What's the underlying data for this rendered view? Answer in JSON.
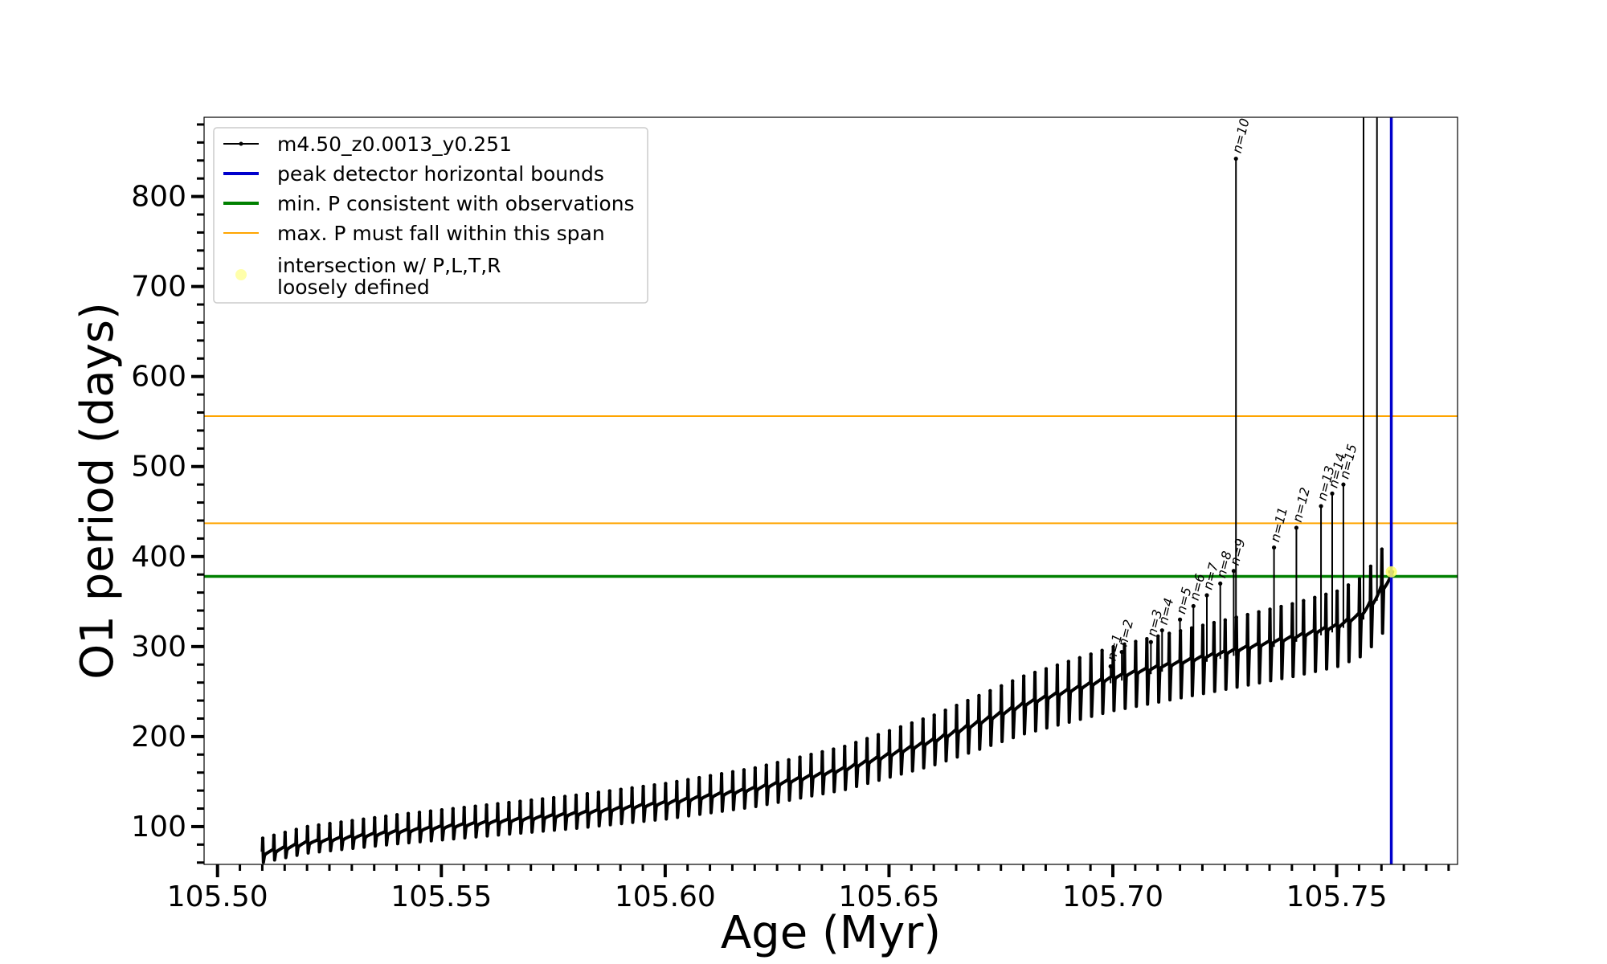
{
  "chart_data": {
    "type": "line",
    "title": "",
    "xlabel": "Age (Myr)",
    "ylabel": "O1 period (days)",
    "xlim": [
      105.497,
      105.777
    ],
    "ylim": [
      58,
      888
    ],
    "xticks": [
      105.5,
      105.55,
      105.6,
      105.65,
      105.7,
      105.75
    ],
    "xtick_labels": [
      "105.50",
      "105.55",
      "105.60",
      "105.65",
      "105.70",
      "105.75"
    ],
    "yticks": [
      100,
      200,
      300,
      400,
      500,
      600,
      700,
      800
    ],
    "ytick_labels": [
      "100",
      "200",
      "300",
      "400",
      "500",
      "600",
      "700",
      "800"
    ],
    "x_minor_step": 0.005,
    "y_minor_step": 20,
    "grid": false,
    "legend_position": "upper-left",
    "series": [
      {
        "name": "m4.50_z0.0013_y0.251",
        "color": "#000000",
        "track": {
          "start_age": 105.51,
          "pulse_age_step": 0.0025,
          "baseline_knots": [
            [
              105.51,
              72
            ],
            [
              105.52,
              84
            ],
            [
              105.54,
              96
            ],
            [
              105.56,
              106
            ],
            [
              105.58,
              116
            ],
            [
              105.6,
              128
            ],
            [
              105.62,
              144
            ],
            [
              105.64,
              166
            ],
            [
              105.66,
              198
            ],
            [
              105.68,
              238
            ],
            [
              105.7,
              268
            ],
            [
              105.72,
              290
            ],
            [
              105.74,
              312
            ],
            [
              105.75,
              325
            ],
            [
              105.756,
              340
            ],
            [
              105.76,
              368
            ],
            [
              105.7615,
              383
            ]
          ]
        },
        "labeled_pulses": [
          {
            "label": "n=1",
            "age": 105.6995,
            "peak": 278
          },
          {
            "label": "n=2",
            "age": 105.702,
            "peak": 294
          },
          {
            "label": "n=3",
            "age": 105.7085,
            "peak": 305
          },
          {
            "label": "n=4",
            "age": 105.711,
            "peak": 318
          },
          {
            "label": "n=5",
            "age": 105.715,
            "peak": 330
          },
          {
            "label": "n=6",
            "age": 105.718,
            "peak": 345
          },
          {
            "label": "n=7",
            "age": 105.721,
            "peak": 357
          },
          {
            "label": "n=8",
            "age": 105.724,
            "peak": 370
          },
          {
            "label": "n=9",
            "age": 105.727,
            "peak": 384
          },
          {
            "label": "n=10",
            "age": 105.7275,
            "peak": 842
          },
          {
            "label": "n=11",
            "age": 105.736,
            "peak": 410
          },
          {
            "label": "n=12",
            "age": 105.741,
            "peak": 432
          },
          {
            "label": "n=13",
            "age": 105.7465,
            "peak": 456
          },
          {
            "label": "n=14",
            "age": 105.749,
            "peak": 470
          },
          {
            "label": "n=15",
            "age": 105.7515,
            "peak": 480
          }
        ],
        "tall_spikes": [
          {
            "age": 105.756,
            "peak": 888
          },
          {
            "age": 105.759,
            "peak": 888
          }
        ]
      }
    ],
    "reference_lines": [
      {
        "name": "peak detector horizontal bounds",
        "orientation": "vertical",
        "x": 105.7622,
        "color": "#0000cc"
      },
      {
        "name": "min. P consistent with observations",
        "orientation": "horizontal",
        "y": 378,
        "color": "#008000"
      },
      {
        "name": "max. P must fall within this span",
        "orientation": "horizontal",
        "y": 437,
        "color": "#ffa500"
      },
      {
        "name": "max. P must fall within this span",
        "orientation": "horizontal",
        "y": 556,
        "color": "#ffa500"
      }
    ],
    "intersection_point": {
      "x": 105.7622,
      "y": 383,
      "color": "#ffff66"
    },
    "legend": [
      {
        "label": "m4.50_z0.0013_y0.251",
        "style": "line-marker",
        "color": "#000000"
      },
      {
        "label": "peak detector horizontal bounds",
        "style": "line",
        "color": "#0000cc"
      },
      {
        "label": "min. P consistent with observations",
        "style": "line",
        "color": "#008000"
      },
      {
        "label": "max. P must fall within this span",
        "style": "line",
        "color": "#ffa500"
      },
      {
        "label": "intersection w/ P,L,T,R",
        "label_line2": "loosely defined",
        "style": "marker",
        "color": "#ffffaa"
      }
    ]
  }
}
